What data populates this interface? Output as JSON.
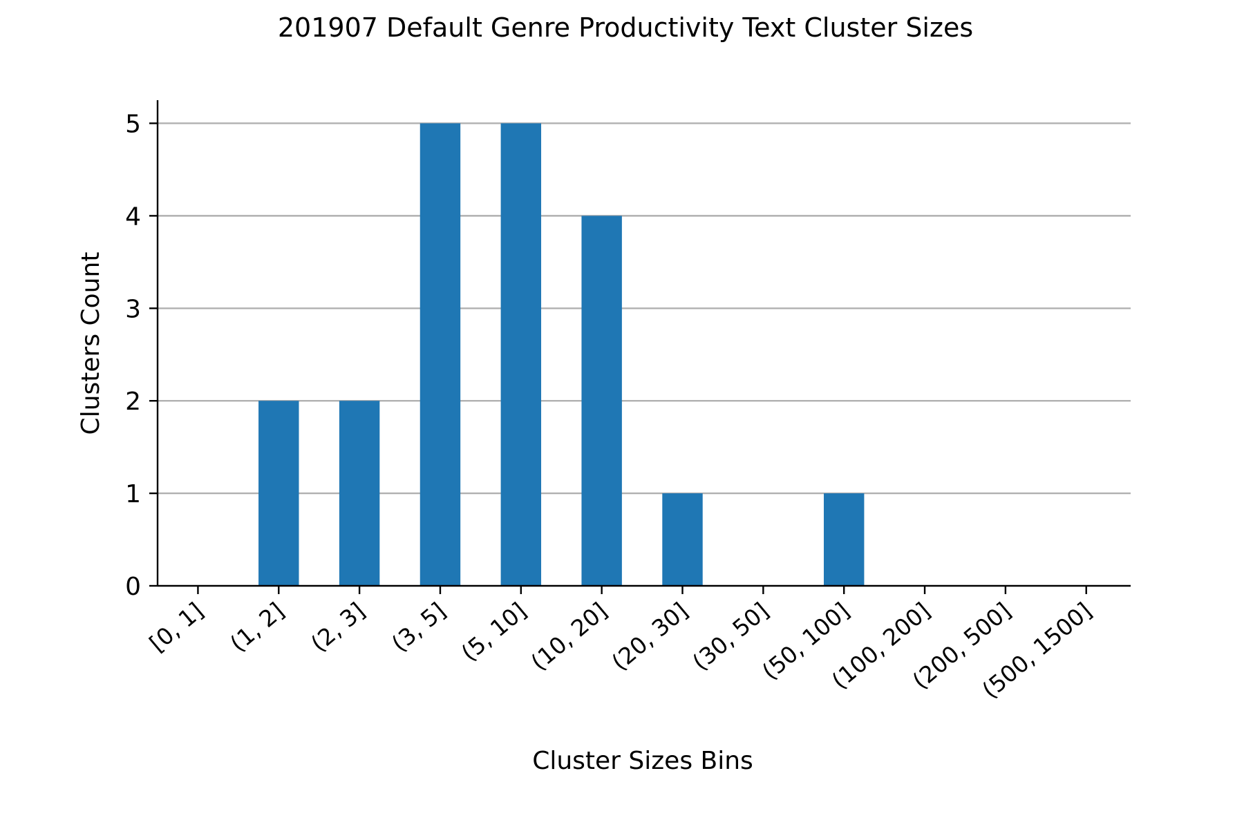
{
  "chart_data": {
    "type": "bar",
    "title": "201907 Default Genre Productivity Text Cluster Sizes",
    "xlabel": "Cluster Sizes Bins",
    "ylabel": "Clusters Count",
    "categories": [
      "[0, 1]",
      "(1, 2]",
      "(2, 3]",
      "(3, 5]",
      "(5, 10]",
      "(10, 20]",
      "(20, 30]",
      "(30, 50]",
      "(50, 100]",
      "(100, 200]",
      "(200, 500]",
      "(500, 1500]"
    ],
    "values": [
      0,
      2,
      2,
      5,
      5,
      4,
      1,
      0,
      1,
      0,
      0,
      0
    ],
    "yticks": [
      0,
      1,
      2,
      3,
      4,
      5
    ],
    "ylim": [
      0,
      5.25
    ],
    "bar_color": "#1f77b4",
    "grid": "y",
    "legend": "none"
  }
}
